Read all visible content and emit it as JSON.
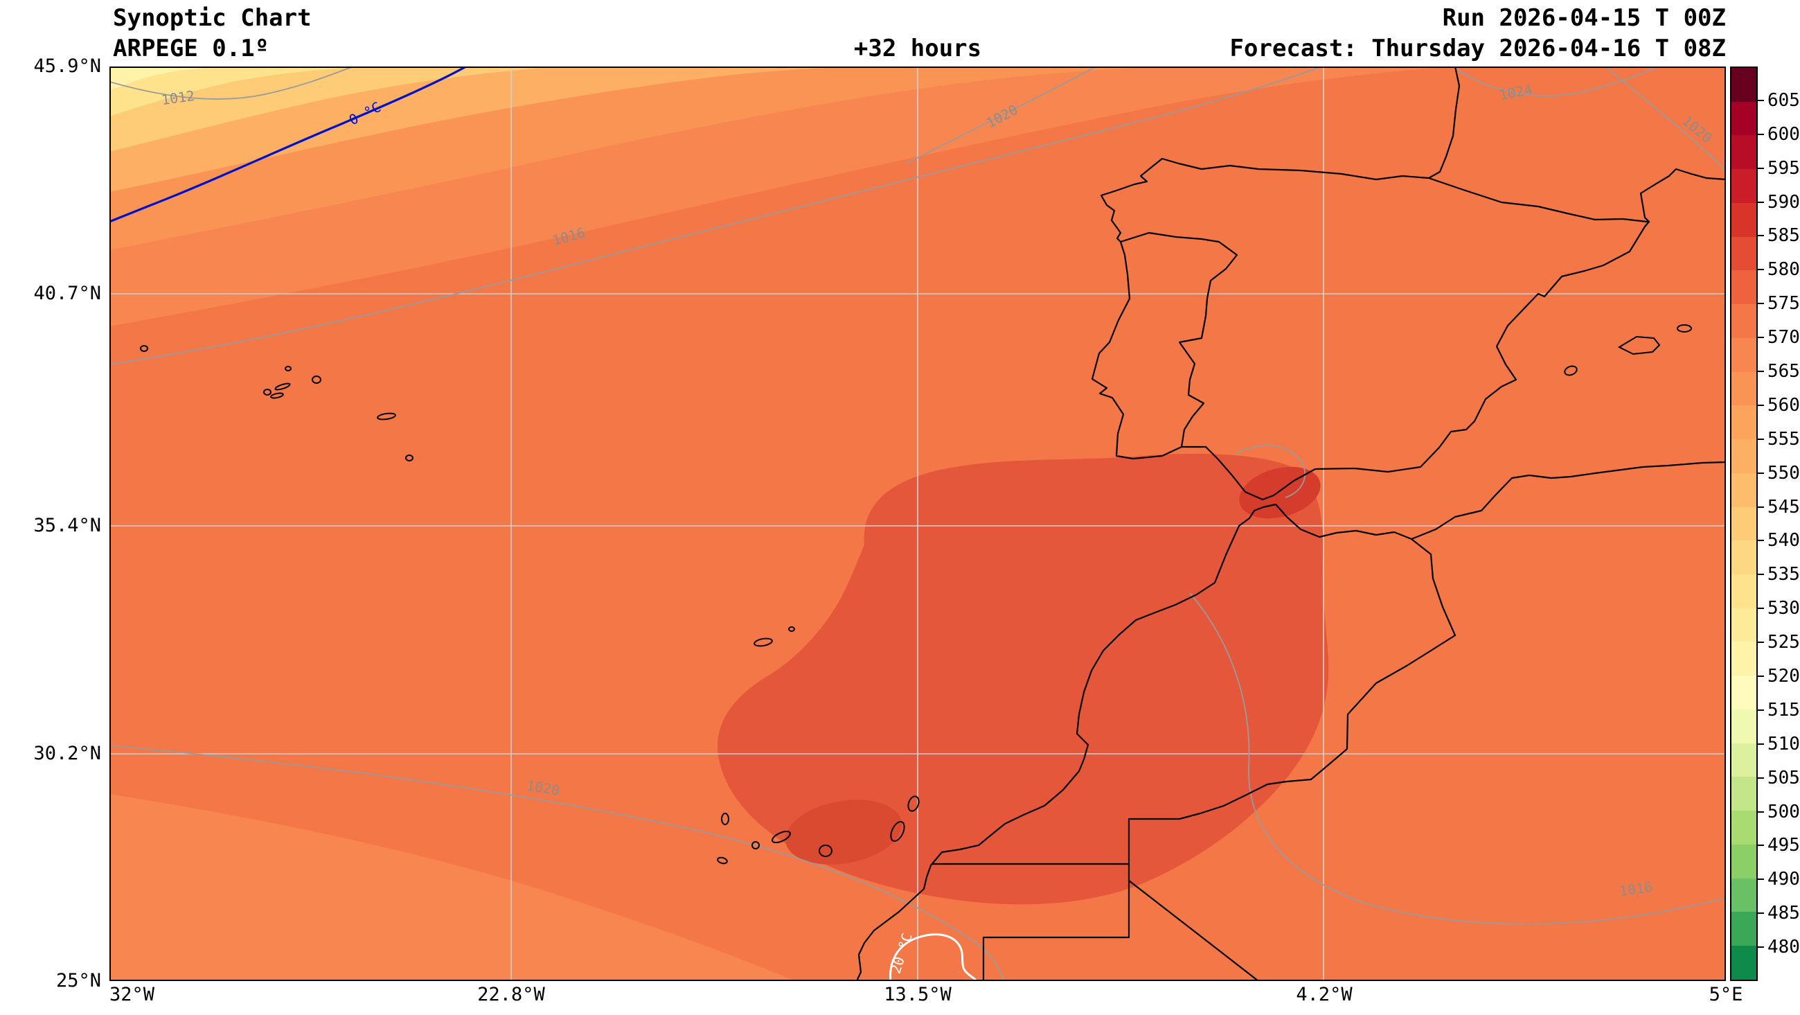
{
  "header": {
    "title": "Synoptic Chart",
    "model": "ARPEGE 0.1º",
    "lead_time": "+32 hours",
    "run_label": "Run 2026-04-15 T 00Z",
    "forecast_label": "Forecast: Thursday 2026-04-16 T 08Z"
  },
  "axes": {
    "y_ticks": [
      "45.9°N",
      "40.7°N",
      "35.4°N",
      "30.2°N",
      "25°N"
    ],
    "x_ticks": [
      "32°W",
      "22.8°W",
      "13.5°W",
      "4.2°W",
      "5°E"
    ]
  },
  "map_labels": {
    "isobar_1012": "1012",
    "isobar_1016_nw": "1016",
    "isobar_1020_north": "1020",
    "isobar_1024_ne": "1024",
    "isobar_1020_east": "1020",
    "isobar_1020_sw": "1020",
    "isobar_1016_se": "1016",
    "temp_zero_line": "0 °C",
    "temp_twenty_line": "20 °C"
  },
  "colorbar": {
    "colors_top_to_bottom": [
      "#67001f",
      "#a50026",
      "#b70d26",
      "#c91e27",
      "#d93429",
      "#e44d33",
      "#ee633e",
      "#f47748",
      "#f88650",
      "#fa9455",
      "#fca35c",
      "#fdb064",
      "#febd6d",
      "#fecb77",
      "#fed782",
      "#fee28c",
      "#feeb9a",
      "#fff3aa",
      "#fefbbd",
      "#f0f9b0",
      "#dcf09e",
      "#c3e788",
      "#a8dc73",
      "#8bcf67",
      "#6ac064",
      "#3aa857",
      "#0e8a4a"
    ]
  },
  "chart_data": {
    "type": "heatmap",
    "title": "Synoptic Chart",
    "model": "ARPEGE 0.1º",
    "run": "2026-04-15 T 00Z",
    "forecast_valid": "Thursday 2026-04-16 T 08Z",
    "lead_time_hours": 32,
    "x": {
      "label": "longitude",
      "ticks": [
        "32°W",
        "22.8°W",
        "13.5°W",
        "4.2°W",
        "5°E"
      ],
      "range_deg": [
        -32,
        5
      ]
    },
    "y": {
      "label": "latitude",
      "ticks": [
        "45.9°N",
        "40.7°N",
        "35.4°N",
        "30.2°N",
        "25°N"
      ],
      "range_deg": [
        25,
        45.9
      ]
    },
    "fill_scale": {
      "ticks": [
        605,
        600,
        595,
        590,
        585,
        580,
        575,
        570,
        565,
        560,
        555,
        550,
        545,
        540,
        535,
        530,
        525,
        520,
        515,
        510,
        505,
        500,
        495,
        490,
        485,
        480
      ],
      "step": 5,
      "orientation": "vertical-right"
    },
    "filled_regions_estimate": [
      {
        "region": "far northwest corner of domain (North Atlantic)",
        "approx_value": "545-555"
      },
      {
        "region": "northwest quadrant banding toward corner",
        "approx_value": "555-575"
      },
      {
        "region": "most of domain (central Atlantic, Iberia, Mediterranean)",
        "approx_value": "575-580"
      },
      {
        "region": "Morocco / Gulf of Cadiz / southern Iberia / west Algeria",
        "approx_value": "585"
      },
      {
        "region": "core spots near Alboran Sea and south of Canaries",
        "approx_value": "590"
      }
    ],
    "contour_lines": {
      "pressure_isobars_hpa": [
        1012,
        1016,
        1020,
        1024
      ],
      "temperature_contours_c": [
        0,
        20
      ],
      "temperature_line_colors": {
        "0": "blue",
        "20": "white"
      }
    },
    "gridlines": {
      "lat_deg": [
        40.7,
        35.4,
        30.2
      ],
      "lon_deg": [
        -22.8,
        -13.5,
        -4.2
      ]
    },
    "geography": [
      "Iberian Peninsula",
      "France",
      "Morocco",
      "Algeria",
      "Western Sahara",
      "Azores",
      "Madeira",
      "Canary Islands",
      "Balearic Islands"
    ],
    "legend_position": "right-colorbar"
  }
}
